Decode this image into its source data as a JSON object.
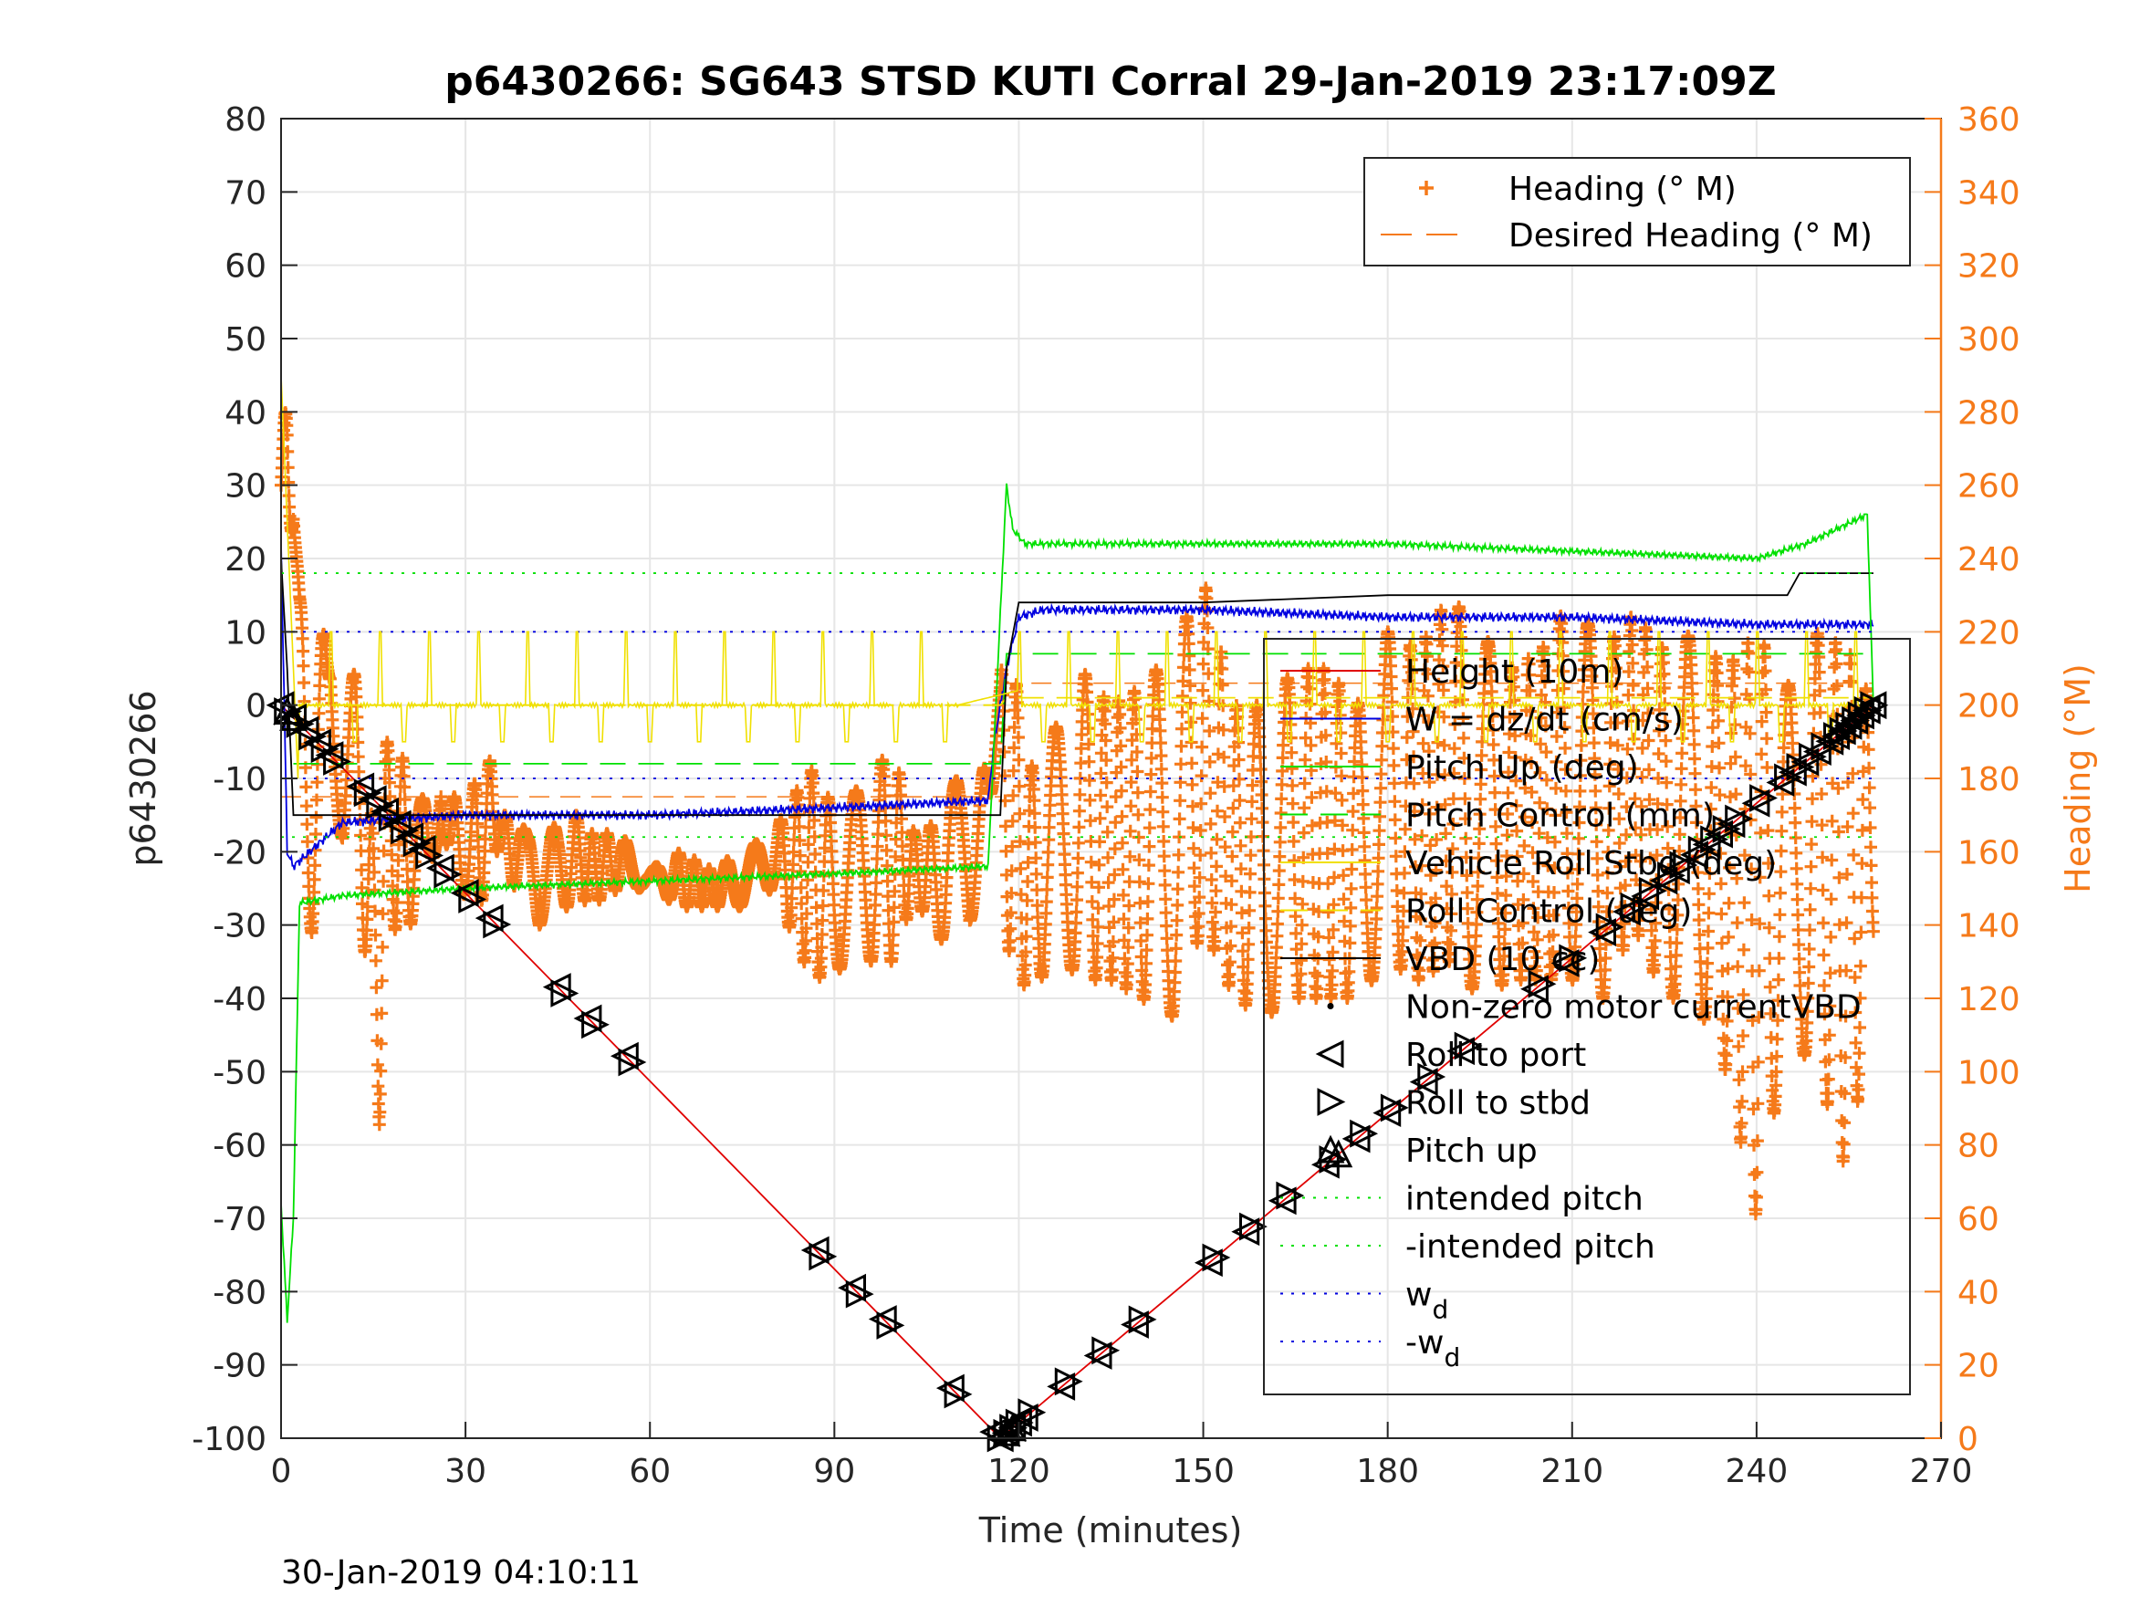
{
  "chart_data": {
    "type": "line",
    "title": "p6430266: SG643 STSD KUTI Corral 29-Jan-2019 23:17:09Z",
    "xlabel": "Time (minutes)",
    "ylabel": "p6430266",
    "y2label": "Heading (°M)",
    "footer": "30-Jan-2019 04:10:11",
    "xlim": [
      0,
      270
    ],
    "ylim": [
      -100,
      80
    ],
    "y2lim": [
      0,
      360
    ],
    "xticks": [
      "0",
      "30",
      "60",
      "90",
      "120",
      "150",
      "180",
      "210",
      "240",
      "270"
    ],
    "yticks": [
      "80",
      "70",
      "60",
      "50",
      "40",
      "30",
      "20",
      "10",
      "0",
      "-10",
      "-20",
      "-30",
      "-40",
      "-50",
      "-60",
      "-70",
      "-80",
      "-90",
      "-100"
    ],
    "y2ticks": [
      "360",
      "340",
      "320",
      "300",
      "280",
      "260",
      "240",
      "220",
      "200",
      "180",
      "160",
      "140",
      "120",
      "100",
      "80",
      "60",
      "40",
      "20",
      "0"
    ],
    "legend_heading": {
      "placement": "top-right",
      "entries": [
        {
          "label": "Heading (° M)",
          "color": "#f57a1a",
          "marker": "plus"
        },
        {
          "label": "Desired Heading (° M)",
          "color": "#f57a1a",
          "style": "dashed"
        }
      ]
    },
    "legend_main": {
      "placement": "right",
      "entries": [
        {
          "label": "Height (10m)",
          "color": "#e00000",
          "style": "solid"
        },
        {
          "label": "W = dz/dt (cm/s)",
          "color": "#0000e0",
          "style": "solid"
        },
        {
          "label": "Pitch Up (deg)",
          "color": "#00e000",
          "style": "solid"
        },
        {
          "label": "Pitch Control (mm)",
          "color": "#00e000",
          "style": "dashed"
        },
        {
          "label": "Vehicle Roll Stbd (deg)",
          "color": "#f0e000",
          "style": "solid"
        },
        {
          "label": "Roll Control (deg)",
          "color": "#f0e000",
          "style": "dashed"
        },
        {
          "label": "VBD (10 cc)",
          "color": "#000000",
          "style": "solid"
        },
        {
          "label": "Non-zero motor currentVBD",
          "color": "#000000",
          "marker": "dot"
        },
        {
          "label": "Roll to port",
          "color": "#000000",
          "marker": "tri-left"
        },
        {
          "label": "Roll to stbd",
          "color": "#000000",
          "marker": "tri-right"
        },
        {
          "label": "Pitch up",
          "color": "#000000",
          "marker": "tri-up"
        },
        {
          "label": "intended pitch",
          "color": "#00e000",
          "style": "dotted"
        },
        {
          "label": "-intended pitch",
          "color": "#00e000",
          "style": "dotted"
        },
        {
          "label": "w",
          "sub": "d",
          "color": "#0000e0",
          "style": "dotted"
        },
        {
          "label": "-w",
          "sub": "d",
          "color": "#0000e0",
          "style": "dotted"
        }
      ]
    },
    "series": [
      {
        "key": "height",
        "x": [
          0,
          117,
          259
        ],
        "y": [
          0,
          -100,
          0
        ]
      },
      {
        "key": "w",
        "x": [
          0,
          1,
          2,
          10,
          30,
          60,
          90,
          115,
          116,
          118,
          120,
          124,
          150,
          180,
          210,
          240,
          259
        ],
        "y": [
          22,
          -20,
          -22,
          -16,
          -15,
          -15,
          -14,
          -13,
          -5,
          5,
          12,
          13,
          13,
          12,
          12,
          11,
          11
        ]
      },
      {
        "key": "pitch_up",
        "x": [
          0,
          1,
          2,
          3,
          10,
          30,
          60,
          90,
          115,
          118,
          119,
          121,
          150,
          180,
          210,
          240,
          248,
          258,
          259
        ],
        "y": [
          -68,
          -84,
          -70,
          -27,
          -26,
          -25,
          -24,
          -23,
          -22,
          30,
          24,
          22,
          22,
          22,
          21,
          20,
          22,
          26,
          0
        ]
      },
      {
        "key": "pitch_control",
        "x": [
          2,
          117,
          118,
          259
        ],
        "y": [
          -8,
          -8,
          7,
          7
        ]
      },
      {
        "key": "roll_control",
        "x": [
          2,
          117,
          118,
          259
        ],
        "y": [
          0,
          0,
          1,
          1
        ]
      },
      {
        "key": "vbd",
        "x": [
          0,
          1,
          2,
          117,
          118,
          120,
          150,
          180,
          210,
          245,
          247,
          259
        ],
        "y": [
          20,
          5,
          -15,
          -15,
          5,
          14,
          14,
          15,
          15,
          15,
          18,
          18
        ]
      },
      {
        "key": "intended_pitch",
        "y_const": 18
      },
      {
        "key": "neg_intended_pitch",
        "y_const": -18
      },
      {
        "key": "wd",
        "y_const": 10
      },
      {
        "key": "neg_wd",
        "y_const": -10
      }
    ],
    "desired_heading": [
      {
        "x": [
          0,
          117
        ],
        "heading": 175
      },
      {
        "x": [
          117,
          259
        ],
        "heading": 206
      }
    ],
    "heading_bands": [
      {
        "x": [
          0,
          1,
          2,
          3,
          4,
          5,
          6,
          7,
          8,
          10,
          12,
          13,
          15,
          16,
          17,
          18,
          20,
          22,
          24,
          26,
          28,
          30,
          32,
          34,
          36,
          38,
          40,
          42,
          45,
          48,
          50,
          55,
          60,
          65,
          70,
          75,
          80,
          85,
          88,
          90,
          93,
          96,
          100,
          103,
          105,
          108,
          110,
          112,
          115,
          117
        ],
        "lo": [
          250,
          240,
          250,
          215,
          160,
          135,
          125,
          145,
          190,
          160,
          165,
          150,
          85,
          85,
          140,
          145,
          120,
          155,
          140,
          175,
          125,
          150,
          140,
          160,
          160,
          150,
          155,
          140,
          140,
          150,
          145,
          150,
          150,
          145,
          145,
          145,
          150,
          130,
          125,
          125,
          135,
          130,
          130,
          150,
          140,
          135,
          155,
          140,
          165,
          200
        ],
        "hi": [
          270,
          285,
          265,
          230,
          215,
          200,
          215,
          220,
          220,
          195,
          210,
          210,
          165,
          180,
          190,
          190,
          185,
          180,
          170,
          175,
          175,
          175,
          180,
          185,
          170,
          170,
          165,
          175,
          165,
          170,
          165,
          165,
          155,
          160,
          155,
          160,
          165,
          180,
          185,
          165,
          175,
          185,
          185,
          165,
          165,
          175,
          180,
          175,
          185,
          205
        ]
      },
      {
        "x": [
          117,
          120,
          123,
          125,
          130,
          135,
          140,
          145,
          150,
          155,
          160,
          165,
          170,
          175,
          180,
          185,
          190,
          195,
          200,
          205,
          210,
          215,
          220,
          225,
          230,
          235,
          240,
          245,
          250,
          255,
          259
        ],
        "lo": [
          140,
          125,
          120,
          135,
          125,
          125,
          120,
          115,
          140,
          120,
          115,
          120,
          120,
          120,
          130,
          125,
          130,
          120,
          125,
          125,
          125,
          120,
          140,
          120,
          120,
          100,
          60,
          110,
          100,
          70,
          130
        ],
        "hi": [
          210,
          205,
          175,
          190,
          210,
          200,
          205,
          215,
          235,
          200,
          200,
          210,
          210,
          200,
          220,
          215,
          230,
          220,
          210,
          215,
          230,
          215,
          225,
          215,
          220,
          210,
          220,
          205,
          220,
          215,
          200
        ]
      }
    ],
    "markers": {
      "roll_to_port": {
        "t": [
          0,
          2,
          4,
          6,
          8,
          13,
          15,
          17,
          19,
          21,
          23,
          26,
          30,
          34,
          45,
          50,
          56,
          87,
          93,
          98,
          109,
          116,
          117,
          118,
          119,
          120,
          121,
          127,
          133,
          139,
          151,
          157,
          163,
          170,
          175,
          180,
          186,
          192,
          204,
          209,
          215,
          219,
          222,
          225,
          227,
          230,
          232,
          234,
          236,
          240,
          244,
          246,
          248,
          250,
          252,
          253,
          254,
          255,
          256,
          257,
          258,
          259
        ]
      },
      "roll_to_stbd": {
        "t": [
          1,
          3,
          5,
          7,
          9,
          14,
          16,
          18,
          20,
          22,
          24,
          27,
          31,
          35,
          46,
          51,
          57,
          88,
          94,
          99,
          110,
          117,
          118,
          119,
          120,
          122,
          128,
          134,
          140,
          152,
          158,
          164,
          171,
          176,
          181,
          187,
          193,
          205,
          210,
          216,
          220,
          223,
          226,
          228,
          231,
          233,
          235,
          237,
          241,
          245,
          247,
          249,
          251,
          253,
          254,
          255,
          256,
          257,
          258,
          259
        ]
      },
      "pitch_up": {
        "t": [
          1,
          2,
          118,
          119,
          172
        ]
      }
    }
  }
}
